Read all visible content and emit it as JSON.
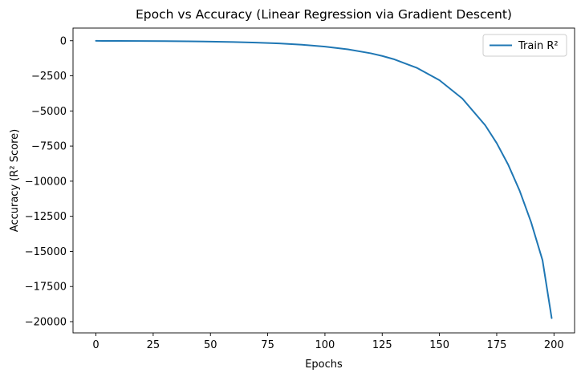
{
  "chart_data": {
    "type": "line",
    "title": "Epoch vs Accuracy (Linear Regression via Gradient Descent)",
    "xlabel": "Epochs",
    "ylabel": "Accuracy (R² Score)",
    "xlim": [
      -10,
      209
    ],
    "ylim": [
      -20800,
      900
    ],
    "xticks": [
      0,
      25,
      50,
      75,
      100,
      125,
      150,
      175,
      200
    ],
    "yticks": [
      0,
      -2500,
      -5000,
      -7500,
      -10000,
      -12500,
      -15000,
      -17500,
      -20000
    ],
    "grid": false,
    "legend": {
      "placement": "top-right"
    },
    "series": [
      {
        "name": "Train R²",
        "color": "#1f77b4",
        "x": [
          0,
          10,
          20,
          30,
          40,
          50,
          60,
          70,
          80,
          90,
          100,
          110,
          120,
          125,
          130,
          140,
          150,
          160,
          170,
          175,
          180,
          185,
          190,
          195,
          199
        ],
        "y": [
          -9,
          -14,
          -20,
          -29,
          -42,
          -62,
          -91,
          -133,
          -195,
          -285,
          -418,
          -612,
          -896,
          -1084,
          -1312,
          -1921,
          -2812,
          -4117,
          -6025,
          -7290,
          -8821,
          -10673,
          -12915,
          -15627,
          -19750
        ]
      }
    ]
  }
}
